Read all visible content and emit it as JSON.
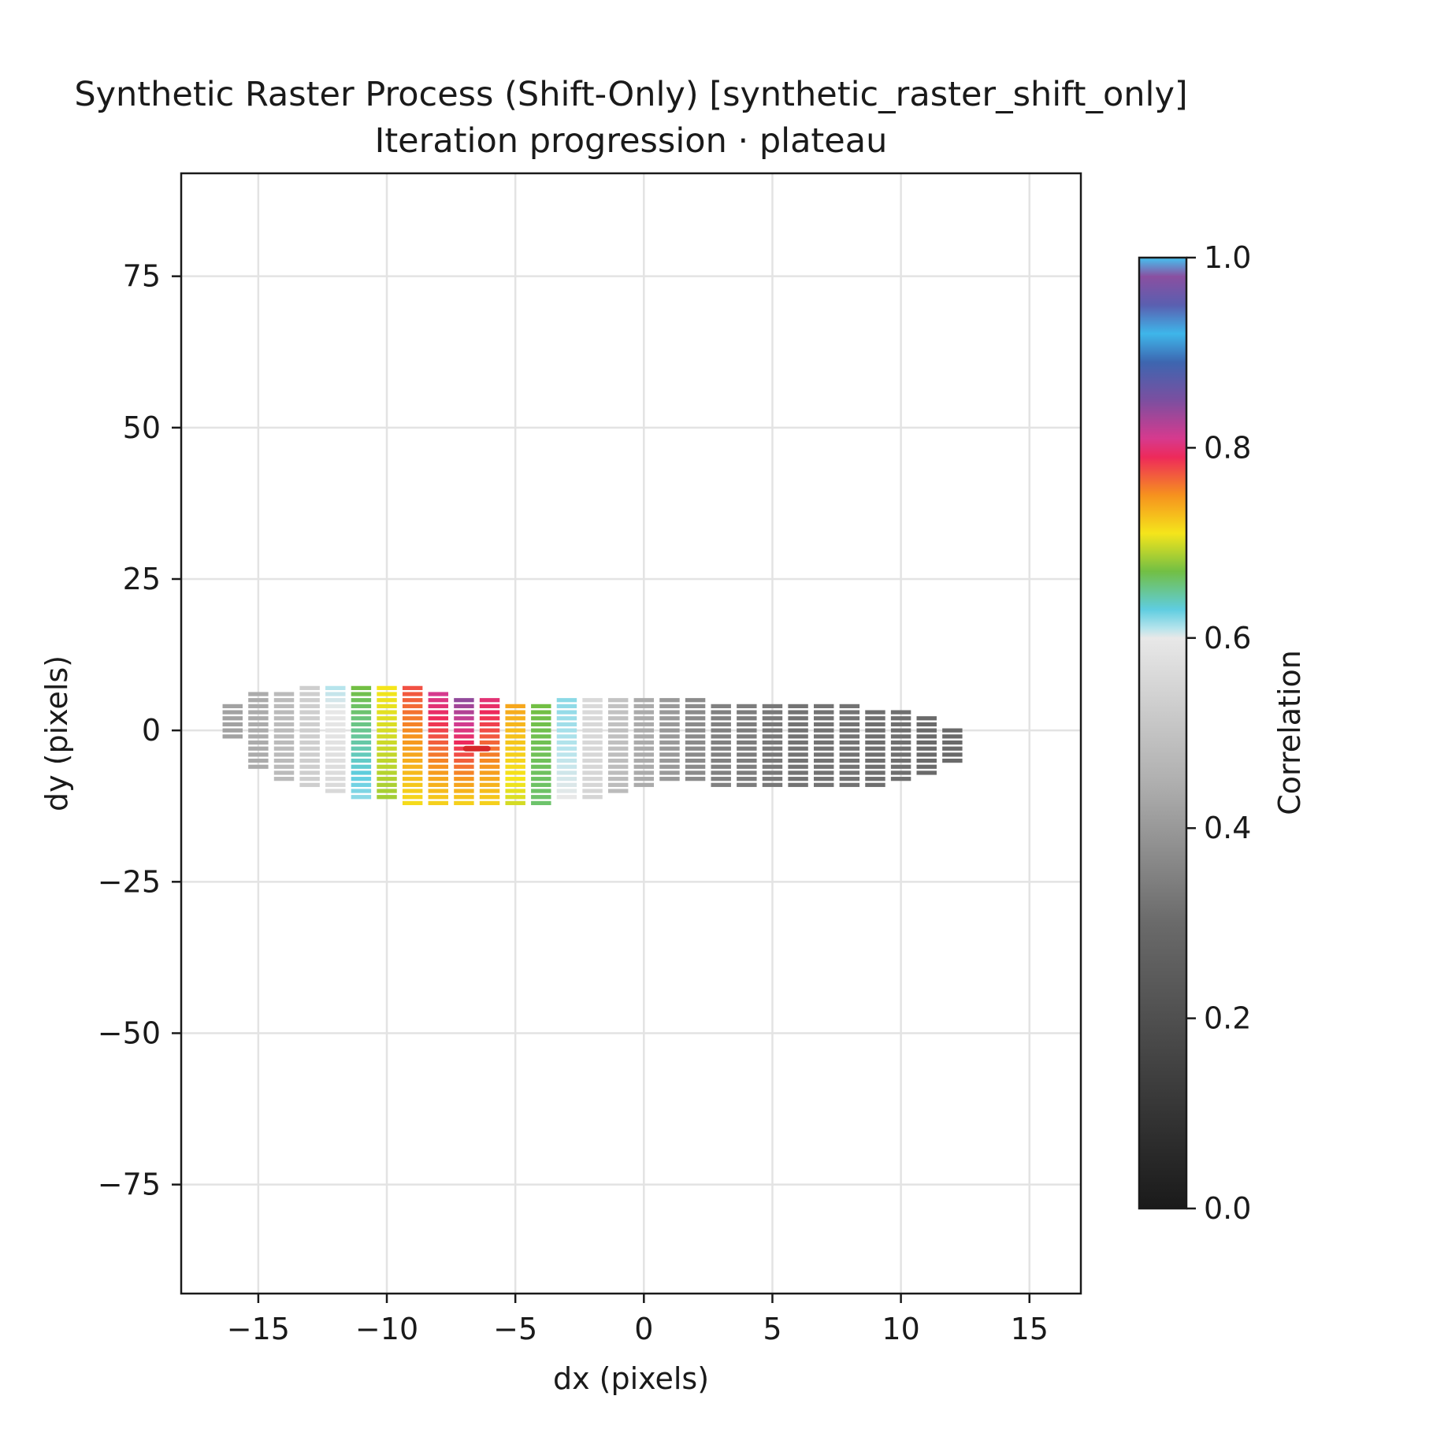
{
  "chart_data": {
    "type": "heatmap",
    "title_line1": "Synthetic Raster Process (Shift-Only) [synthetic_raster_shift_only]",
    "title_line2": "Iteration progression · plateau",
    "xlabel": "dx (pixels)",
    "ylabel": "dy (pixels)",
    "xlim": [
      -18,
      17
    ],
    "ylim": [
      -93,
      92
    ],
    "xticks": [
      -15,
      -10,
      -5,
      0,
      5,
      10,
      15
    ],
    "xtick_labels": [
      "−15",
      "−10",
      "−5",
      "0",
      "5",
      "10",
      "15"
    ],
    "yticks": [
      75,
      50,
      25,
      0,
      -25,
      -50,
      -75
    ],
    "ytick_labels": [
      "75",
      "50",
      "25",
      "0",
      "−25",
      "−50",
      "−75"
    ],
    "grid": true,
    "colorbar": {
      "label": "Correlation",
      "range": [
        0.0,
        1.0
      ],
      "ticks": [
        0.0,
        0.2,
        0.4,
        0.6,
        0.8,
        1.0
      ],
      "tick_labels": [
        "0.0",
        "0.2",
        "0.4",
        "0.6",
        "0.8",
        "1.0"
      ],
      "stops": [
        {
          "v": 0.0,
          "c": "#1a1a1a"
        },
        {
          "v": 0.3,
          "c": "#6a6a6a"
        },
        {
          "v": 0.45,
          "c": "#b0b0b0"
        },
        {
          "v": 0.6,
          "c": "#e8e8e8"
        },
        {
          "v": 0.61,
          "c": "#b6e4ec"
        },
        {
          "v": 0.63,
          "c": "#5fcde0"
        },
        {
          "v": 0.67,
          "c": "#72bf44"
        },
        {
          "v": 0.71,
          "c": "#f5e51b"
        },
        {
          "v": 0.75,
          "c": "#f6921e"
        },
        {
          "v": 0.79,
          "c": "#ee2a5a"
        },
        {
          "v": 0.81,
          "c": "#d63a8e"
        },
        {
          "v": 0.85,
          "c": "#7b4fa0"
        },
        {
          "v": 0.89,
          "c": "#3d66b0"
        },
        {
          "v": 0.92,
          "c": "#3eb6ea"
        },
        {
          "v": 0.95,
          "c": "#5a5fb0"
        },
        {
          "v": 0.98,
          "c": "#8a4fa0"
        },
        {
          "v": 1.0,
          "c": "#45c2f0"
        }
      ]
    },
    "columns": [
      {
        "dx": -16,
        "dy_min": -1,
        "dy_max": 4,
        "correlation": [
          0.42,
          0.42
        ]
      },
      {
        "dx": -15,
        "dy_min": -6,
        "dy_max": 6,
        "correlation": [
          0.44,
          0.44
        ]
      },
      {
        "dx": -14,
        "dy_min": -8,
        "dy_max": 6,
        "correlation": [
          0.48,
          0.48
        ]
      },
      {
        "dx": -13,
        "dy_min": -9,
        "dy_max": 7,
        "correlation": [
          0.53,
          0.53
        ]
      },
      {
        "dx": -12,
        "dy_min": -10,
        "dy_max": 7,
        "correlation": [
          0.61,
          0.56
        ]
      },
      {
        "dx": -11,
        "dy_min": -11,
        "dy_max": 7,
        "correlation": [
          0.67,
          0.62
        ]
      },
      {
        "dx": -10,
        "dy_min": -11,
        "dy_max": 7,
        "correlation": [
          0.71,
          0.685
        ]
      },
      {
        "dx": -9,
        "dy_min": -12,
        "dy_max": 7,
        "correlation": [
          0.775,
          0.715
        ]
      },
      {
        "dx": -8,
        "dy_min": -12,
        "dy_max": 6,
        "correlation": [
          0.81,
          0.72
        ]
      },
      {
        "dx": -7,
        "dy_min": -12,
        "dy_max": 5,
        "correlation": [
          0.84,
          0.72
        ]
      },
      {
        "dx": -6,
        "dy_min": -12,
        "dy_max": 5,
        "correlation": [
          0.8,
          0.72
        ]
      },
      {
        "dx": -5,
        "dy_min": -12,
        "dy_max": 4,
        "correlation": [
          0.74,
          0.7
        ]
      },
      {
        "dx": -4,
        "dy_min": -12,
        "dy_max": 4,
        "correlation": [
          0.67,
          0.66
        ]
      },
      {
        "dx": -3,
        "dy_min": -11,
        "dy_max": 5,
        "correlation": [
          0.62,
          0.6
        ]
      },
      {
        "dx": -2,
        "dy_min": -11,
        "dy_max": 5,
        "correlation": [
          0.56,
          0.55
        ]
      },
      {
        "dx": -1,
        "dy_min": -10,
        "dy_max": 5,
        "correlation": [
          0.5,
          0.48
        ]
      },
      {
        "dx": 0,
        "dy_min": -9,
        "dy_max": 5,
        "correlation": [
          0.44,
          0.44
        ]
      },
      {
        "dx": 1,
        "dy_min": -8,
        "dy_max": 5,
        "correlation": [
          0.4,
          0.4
        ]
      },
      {
        "dx": 2,
        "dy_min": -8,
        "dy_max": 5,
        "correlation": [
          0.37,
          0.37
        ]
      },
      {
        "dx": 3,
        "dy_min": -9,
        "dy_max": 4,
        "correlation": [
          0.35,
          0.35
        ]
      },
      {
        "dx": 4,
        "dy_min": -9,
        "dy_max": 4,
        "correlation": [
          0.34,
          0.34
        ]
      },
      {
        "dx": 5,
        "dy_min": -9,
        "dy_max": 4,
        "correlation": [
          0.33,
          0.33
        ]
      },
      {
        "dx": 6,
        "dy_min": -9,
        "dy_max": 4,
        "correlation": [
          0.32,
          0.32
        ]
      },
      {
        "dx": 7,
        "dy_min": -9,
        "dy_max": 4,
        "correlation": [
          0.32,
          0.32
        ]
      },
      {
        "dx": 8,
        "dy_min": -9,
        "dy_max": 4,
        "correlation": [
          0.32,
          0.32
        ]
      },
      {
        "dx": 9,
        "dy_min": -9,
        "dy_max": 3,
        "correlation": [
          0.31,
          0.31
        ]
      },
      {
        "dx": 10,
        "dy_min": -8,
        "dy_max": 3,
        "correlation": [
          0.31,
          0.31
        ]
      },
      {
        "dx": 11,
        "dy_min": -7,
        "dy_max": 2,
        "correlation": [
          0.3,
          0.3
        ]
      },
      {
        "dx": 12,
        "dy_min": -5,
        "dy_max": 0,
        "correlation": [
          0.3,
          0.3
        ]
      }
    ],
    "best_estimate": {
      "dx": -6.5,
      "dy": -3,
      "color": "#d62728"
    }
  }
}
